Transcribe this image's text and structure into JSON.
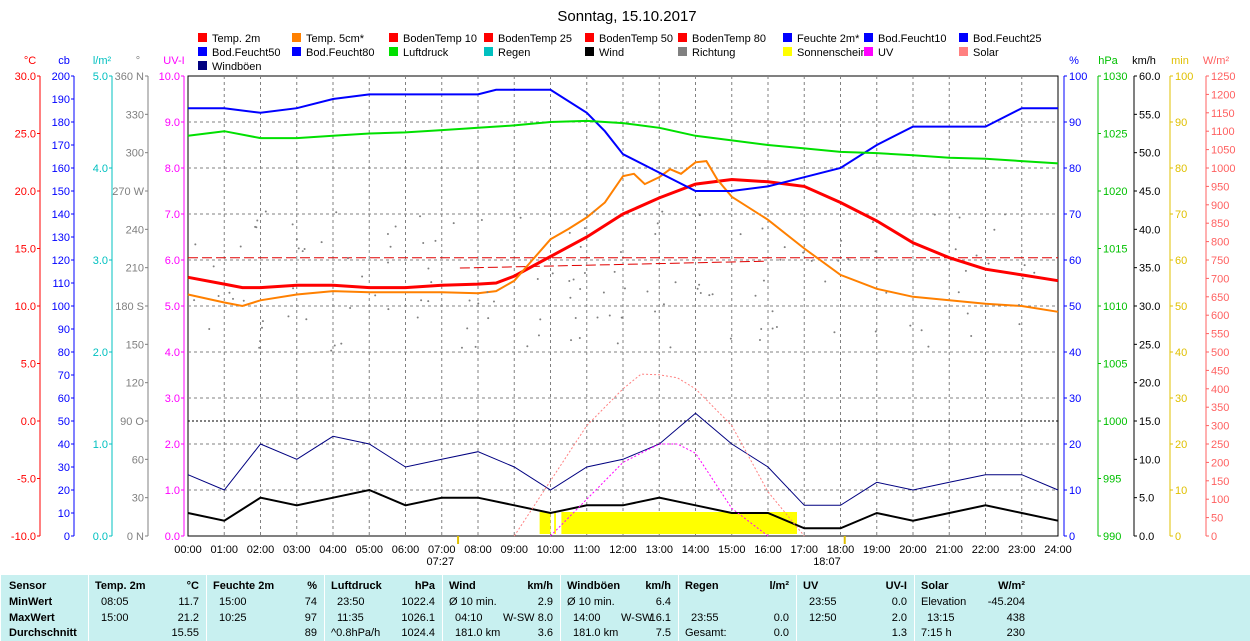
{
  "chart_data": {
    "type": "line",
    "title": "Sonntag, 15.10.2017",
    "x_ticks": [
      "00:00",
      "01:00",
      "02:00",
      "03:00",
      "04:00",
      "05:00",
      "06:00",
      "07:00",
      "08:00",
      "09:00",
      "10:00",
      "11:00",
      "12:00",
      "13:00",
      "14:00",
      "15:00",
      "16:00",
      "17:00",
      "18:00",
      "19:00",
      "20:00",
      "21:00",
      "22:00",
      "23:00",
      "24:00"
    ],
    "sunrise": "07:27",
    "sunset": "18:07",
    "legend": [
      {
        "label": "Temp. 2m",
        "color": "#ff0000"
      },
      {
        "label": "Temp. 5cm*",
        "color": "#ff8000"
      },
      {
        "label": "BodenTemp 10",
        "color": "#ff0000"
      },
      {
        "label": "BodenTemp 25",
        "color": "#ff0000"
      },
      {
        "label": "BodenTemp 50",
        "color": "#ff0000"
      },
      {
        "label": "BodenTemp 80",
        "color": "#ff0000"
      },
      {
        "label": "Feuchte 2m*",
        "color": "#0000ff"
      },
      {
        "label": "Bod.Feucht10",
        "color": "#0000ff"
      },
      {
        "label": "Bod.Feucht25",
        "color": "#0000ff"
      },
      {
        "label": "Bod.Feucht50",
        "color": "#0000ff"
      },
      {
        "label": "Bod.Feucht80",
        "color": "#0000ff"
      },
      {
        "label": "Luftdruck",
        "color": "#00e000"
      },
      {
        "label": "Regen",
        "color": "#00c0c0"
      },
      {
        "label": "Wind",
        "color": "#000000"
      },
      {
        "label": "Richtung",
        "color": "#808080"
      },
      {
        "label": "Sonnenschein",
        "color": "#ffff00"
      },
      {
        "label": "UV",
        "color": "#ff00ff"
      },
      {
        "label": "Solar",
        "color": "#ff8080"
      },
      {
        "label": "Windböen",
        "color": "#000080"
      }
    ],
    "axes": [
      {
        "unit": "°C",
        "color": "#ff0000",
        "range": [
          -10,
          30
        ],
        "ticks": [
          "30.0",
          "25.0",
          "20.0",
          "15.0",
          "10.0",
          "5.0",
          "0.0",
          "-5.0",
          "-10.0"
        ]
      },
      {
        "unit": "cb",
        "color": "#0000ff",
        "range": [
          0,
          200
        ],
        "ticks": [
          "200",
          "190",
          "180",
          "170",
          "160",
          "150",
          "140",
          "130",
          "120",
          "110",
          "100",
          "90",
          "80",
          "70",
          "60",
          "50",
          "40",
          "30",
          "20",
          "10",
          "0"
        ]
      },
      {
        "unit": "l/m²",
        "color": "#00c0c0",
        "range": [
          0,
          5
        ],
        "ticks": [
          "5.0",
          "4.0",
          "3.0",
          "2.0",
          "1.0",
          "0.0"
        ]
      },
      {
        "unit": "°",
        "color": "#808080",
        "range": [
          0,
          360
        ],
        "ticks": [
          "360 N",
          "330",
          "300",
          "270 W",
          "240",
          "210",
          "180 S",
          "150",
          "120",
          "90 O",
          "60",
          "30",
          "0 N"
        ]
      },
      {
        "unit": "UV-I",
        "color": "#ff00ff",
        "range": [
          0,
          10
        ],
        "ticks": [
          "10.0",
          "9.0",
          "8.0",
          "7.0",
          "6.0",
          "5.0",
          "4.0",
          "3.0",
          "2.0",
          "1.0",
          "0.0"
        ]
      },
      {
        "unit": "%",
        "color": "#0000ff",
        "range": [
          0,
          100
        ],
        "ticks": [
          "100",
          "90",
          "80",
          "70",
          "60",
          "50",
          "40",
          "30",
          "20",
          "10",
          "0"
        ]
      },
      {
        "unit": "hPa",
        "color": "#00c000",
        "range": [
          990,
          1030
        ],
        "ticks": [
          "1030",
          "1025",
          "1020",
          "1015",
          "1010",
          "1005",
          "1000",
          "995",
          "990"
        ]
      },
      {
        "unit": "km/h",
        "color": "#000000",
        "range": [
          0,
          60
        ],
        "ticks": [
          "60.0",
          "55.0",
          "50.0",
          "45.0",
          "40.0",
          "35.0",
          "30.0",
          "25.0",
          "20.0",
          "15.0",
          "10.0",
          "5.0",
          "0.0"
        ]
      },
      {
        "unit": "min",
        "color": "#e0c000",
        "range": [
          0,
          100
        ],
        "ticks": [
          "100",
          "90",
          "80",
          "70",
          "60",
          "50",
          "40",
          "30",
          "20",
          "10",
          "0"
        ]
      },
      {
        "unit": "W/m²",
        "color": "#ff6060",
        "range": [
          0,
          1250
        ],
        "ticks": [
          "1250",
          "1200",
          "1150",
          "1100",
          "1050",
          "1000",
          "950",
          "900",
          "850",
          "800",
          "750",
          "700",
          "650",
          "600",
          "550",
          "500",
          "450",
          "400",
          "350",
          "300",
          "250",
          "200",
          "150",
          "100",
          "50",
          "0"
        ]
      }
    ],
    "series": [
      {
        "name": "Temp. 2m",
        "axis": "°C",
        "color": "#ff0000",
        "x": [
          0,
          1,
          1.5,
          2,
          3,
          4,
          5,
          6,
          7,
          8,
          8.5,
          9,
          10,
          11,
          12,
          13,
          14,
          15,
          16,
          17,
          18,
          19,
          20,
          21,
          22,
          23,
          24
        ],
        "values": [
          12.5,
          11.9,
          11.6,
          11.6,
          11.8,
          11.8,
          11.6,
          11.6,
          11.8,
          11.9,
          12.0,
          12.6,
          14.3,
          16.0,
          18.0,
          19.4,
          20.6,
          21.0,
          20.8,
          20.4,
          19.0,
          17.4,
          15.5,
          14.2,
          13.2,
          12.7,
          12.2
        ]
      },
      {
        "name": "Temp. 5cm*",
        "axis": "°C",
        "color": "#ff8000",
        "x": [
          0,
          1,
          1.5,
          2,
          3,
          4,
          5,
          6,
          7,
          8,
          8.5,
          9,
          9.5,
          10,
          10.5,
          11,
          11.5,
          12,
          12.3,
          12.6,
          13,
          13.3,
          13.6,
          14,
          14.3,
          14.6,
          15,
          16,
          17,
          18,
          19,
          20,
          21,
          22,
          23,
          24
        ],
        "values": [
          11.0,
          10.3,
          10.0,
          10.5,
          11.0,
          11.3,
          11.2,
          11.2,
          11.2,
          11.1,
          11.3,
          12.2,
          14.0,
          15.8,
          16.7,
          17.7,
          19.0,
          21.3,
          21.5,
          20.6,
          21.2,
          21.9,
          21.5,
          22.5,
          22.6,
          21.0,
          19.5,
          17.5,
          15.0,
          12.7,
          11.5,
          10.8,
          10.5,
          10.2,
          10.0,
          9.5
        ]
      },
      {
        "name": "Feuchte 2m*",
        "axis": "%",
        "color": "#0000ff",
        "x": [
          0,
          1,
          2,
          3,
          4,
          5,
          6,
          7,
          8,
          8.5,
          9,
          9.5,
          10,
          11,
          11.5,
          12,
          13,
          14,
          15,
          16,
          17,
          18,
          19,
          20,
          21,
          22,
          23,
          24
        ],
        "values": [
          93,
          93,
          92,
          93,
          95,
          96,
          96,
          96,
          96,
          97,
          97,
          97,
          97,
          92,
          88,
          83,
          79,
          75,
          75,
          76,
          78,
          80,
          85,
          89,
          89,
          89,
          93,
          93
        ]
      },
      {
        "name": "Luftdruck",
        "axis": "hPa",
        "color": "#00e000",
        "x": [
          0,
          1,
          2,
          3,
          4,
          5,
          6,
          7,
          8,
          9,
          10,
          11,
          12,
          13,
          14,
          15,
          16,
          17,
          18,
          19,
          20,
          21,
          22,
          23,
          24
        ],
        "values": [
          1024.8,
          1025.2,
          1024.6,
          1024.6,
          1024.8,
          1025.0,
          1025.1,
          1025.3,
          1025.5,
          1025.7,
          1026.0,
          1026.1,
          1025.9,
          1025.5,
          1024.8,
          1024.4,
          1024.0,
          1023.7,
          1023.4,
          1023.3,
          1023.1,
          1022.9,
          1022.8,
          1022.6,
          1022.4
        ]
      },
      {
        "name": "Wind",
        "axis": "km/h",
        "color": "#000000",
        "x": [
          0,
          1,
          2,
          3,
          4,
          5,
          6,
          7,
          8,
          9,
          10,
          11,
          12,
          13,
          14,
          15,
          16,
          17,
          18,
          19,
          20,
          21,
          22,
          23,
          24
        ],
        "values": [
          3,
          2,
          5,
          4,
          5,
          6,
          4,
          5,
          5,
          4,
          3,
          4,
          4,
          5,
          4,
          3,
          3,
          1,
          1,
          3,
          2,
          3,
          4,
          3,
          2
        ]
      },
      {
        "name": "Windböen",
        "axis": "km/h",
        "color": "#000080",
        "x": [
          0,
          1,
          2,
          3,
          4,
          5,
          6,
          7,
          8,
          9,
          10,
          11,
          12,
          13,
          14,
          15,
          16,
          17,
          18,
          19,
          20,
          21,
          22,
          23,
          24
        ],
        "values": [
          8,
          6,
          12,
          10,
          13,
          12,
          9,
          10,
          11,
          9,
          6,
          9,
          10,
          12,
          16,
          12,
          9,
          4,
          4,
          7,
          6,
          7,
          8,
          8,
          6
        ]
      },
      {
        "name": "Solar",
        "axis": "W/m²",
        "color": "#ff8080",
        "x": [
          9,
          10,
          11,
          12,
          12.5,
          13,
          13.5,
          14,
          15,
          16,
          17
        ],
        "values": [
          0,
          150,
          300,
          400,
          440,
          438,
          430,
          400,
          300,
          120,
          0
        ]
      },
      {
        "name": "UV",
        "axis": "UV-I",
        "color": "#ff00ff",
        "x": [
          10,
          11,
          12,
          13,
          13.5,
          14,
          15,
          16
        ],
        "values": [
          0,
          0.8,
          1.6,
          2.0,
          2.0,
          1.8,
          0.6,
          0
        ]
      }
    ]
  },
  "table": {
    "sensor": {
      "header": "Sensor",
      "min": "MinWert",
      "max": "MaxWert",
      "avg": "Durchschnitt"
    },
    "temp": {
      "header": "Temp. 2m",
      "unit": "°C",
      "min_time": "08:05",
      "min_val": "11.7",
      "max_time": "15:00",
      "max_val": "21.2",
      "avg_val": "15.55"
    },
    "feuchte": {
      "header": "Feuchte 2m",
      "unit": "%",
      "min_time": "15:00",
      "min_val": "74",
      "max_time": "10:25",
      "max_val": "97",
      "avg_val": "89"
    },
    "druck": {
      "header": "Luftdruck",
      "unit": "hPa",
      "min_time": "23:50",
      "min_val": "1022.4",
      "max_time": "11:35",
      "max_val": "1026.1",
      "avg_label": "^0.8hPa/h",
      "avg_val": "1024.4"
    },
    "wind": {
      "header": "Wind",
      "unit": "km/h",
      "min_label": "Ø 10 min.",
      "min_val": "2.9",
      "max_time": "04:10",
      "max_dir": "W-SW",
      "max_val": "8.0",
      "avg_label": "181.0 km",
      "avg_val": "3.6"
    },
    "boeen": {
      "header": "Windböen",
      "unit": "km/h",
      "min_label": "Ø 10 min.",
      "min_val": "6.4",
      "max_time": "14:00",
      "max_dir": "W-SW",
      "max_val": "16.1",
      "avg_label": "181.0 km",
      "avg_val": "7.5"
    },
    "regen": {
      "header": "Regen",
      "unit": "l/m²",
      "max_time": "23:55",
      "max_val": "0.0",
      "avg_label": "Gesamt:",
      "avg_val": "0.0"
    },
    "uv": {
      "header": "UV",
      "unit": "UV-I",
      "min_time": "23:55",
      "min_val": "0.0",
      "max_time": "12:50",
      "max_val": "2.0",
      "avg_val": "1.3"
    },
    "solar": {
      "header": "Solar",
      "unit": "W/m²",
      "min_label": "Elevation",
      "min_val": "-45.204",
      "max_time": "13:15",
      "max_val": "438",
      "avg_label": "7:15 h",
      "avg_val": "230"
    }
  }
}
